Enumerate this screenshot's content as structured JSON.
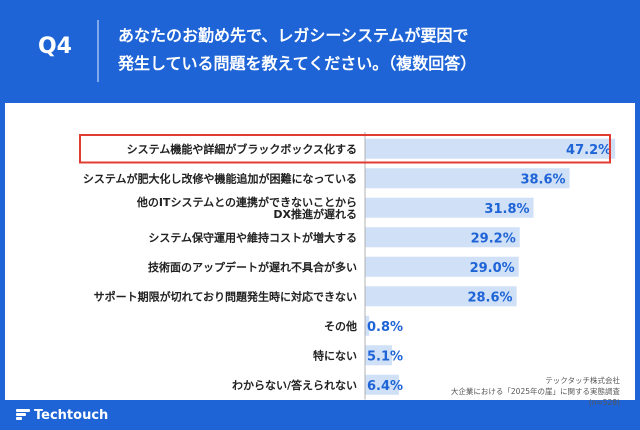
{
  "header": {
    "qnum": "Q4",
    "line1": "あなたのお勤め先で、レガシーシステムが要因で",
    "line2": "発生している問題を教えてください。（複数回答）"
  },
  "source": {
    "company": "テックタッチ株式会社",
    "survey": "大企業における「2025年の崖」に関する実態調査",
    "n": "(n=528)"
  },
  "brand": {
    "logo_text": "Techtouch"
  },
  "chart_data": {
    "type": "bar",
    "orientation": "horizontal",
    "categories": [
      [
        "システム機能や詳細がブラックボックス化する"
      ],
      [
        "システムが肥大化し改修や機能追加が困難になっている"
      ],
      [
        "他のITシステムとの連携ができないことから",
        "DX推進が遅れる"
      ],
      [
        "システム保守運用や維持コストが増大する"
      ],
      [
        "技術面のアップデートが遅れ不具合が多い"
      ],
      [
        "サポート期限が切れており問題発生時に対応できない"
      ],
      [
        "その他"
      ],
      [
        "特にない"
      ],
      [
        "わからない/答えられない"
      ]
    ],
    "values": [
      47.2,
      38.6,
      31.8,
      29.2,
      29.0,
      28.6,
      0.8,
      5.1,
      6.4
    ],
    "value_labels": [
      "47.2%",
      "38.6%",
      "31.8%",
      "29.2%",
      "29.0%",
      "28.6%",
      "0.8%",
      "5.1%",
      "6.4%"
    ],
    "xlim": [
      0,
      50
    ],
    "highlight_index": 0,
    "colors": {
      "bar": "#cfe0f7",
      "value_label": "#1e64d6",
      "highlight": "#e03c31",
      "frame": "#1e64d6"
    }
  }
}
